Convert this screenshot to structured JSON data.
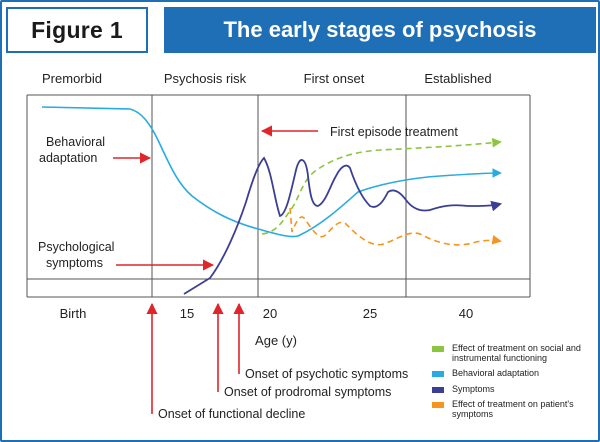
{
  "header": {
    "figure_label": "Figure 1",
    "title": "The early stages of psychosis"
  },
  "stages": [
    "Premorbid",
    "Psychosis risk",
    "First onset",
    "Established"
  ],
  "x_ticks": [
    "Birth",
    "15",
    "20",
    "25",
    "40"
  ],
  "x_axis_label": "Age (y)",
  "annotations": {
    "behavioral_adaptation": [
      "Behavioral",
      "adaptation"
    ],
    "psychological_symptoms": [
      "Psychological",
      "symptoms"
    ],
    "first_episode_treatment": "First episode treatment",
    "onset_functional_decline": "Onset of functional decline",
    "onset_prodromal": "Onset of prodromal symptoms",
    "onset_psychotic": "Onset of psychotic symptoms"
  },
  "legend": [
    {
      "label_lines": [
        "Effect of treatment on social and",
        "instrumental functioning"
      ],
      "color": "#8cc63f",
      "icon": "legend-green-swatch"
    },
    {
      "label_lines": [
        "Behavioral adaptation"
      ],
      "color": "#29abe2",
      "icon": "legend-cyan-swatch"
    },
    {
      "label_lines": [
        "Symptoms"
      ],
      "color": "#3b3f94",
      "icon": "legend-navy-swatch"
    },
    {
      "label_lines": [
        "Effect of treatment on patient's",
        "symptoms"
      ],
      "color": "#f7941d",
      "icon": "legend-orange-swatch"
    }
  ],
  "colors": {
    "brand_blue": "#1e6fb5",
    "arrow_red": "#e0252b",
    "grid_gray": "#555555",
    "behavioral": "#29abe2",
    "symptoms": "#3b3f94",
    "treatment_social": "#8cc63f",
    "treatment_symptoms": "#f7941d"
  }
}
